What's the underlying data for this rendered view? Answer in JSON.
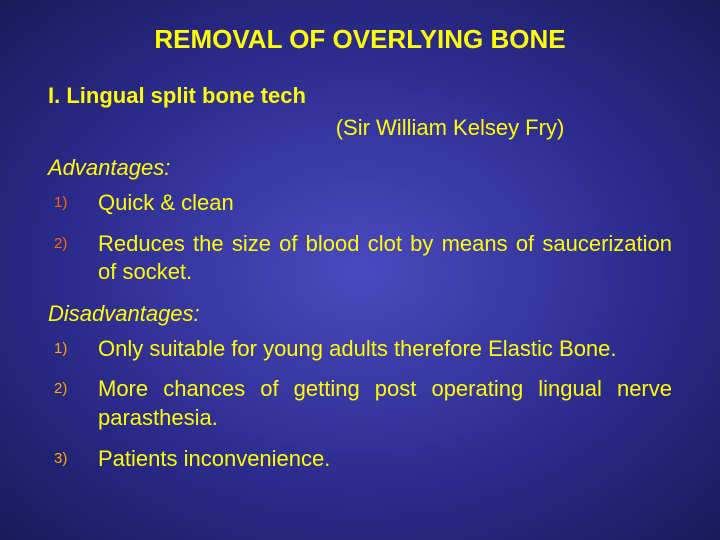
{
  "colors": {
    "title": "#ffff00",
    "sectionHead": "#ffff00",
    "attrib": "#ffff00",
    "advHead": "#ffff00",
    "disHead": "#ffff00",
    "advNum": "#ff6600",
    "disNum": "#ffa800",
    "advText": "#ffff00",
    "disText": "#ffff00"
  },
  "sizes": {
    "title": 26,
    "sectionHead": 22,
    "attrib": 22,
    "subhead": 22,
    "listText": 22,
    "listNum": 15
  },
  "title": "REMOVAL OF OVERLYING BONE",
  "sectionHead": "I. Lingual split bone tech",
  "attribution": "(Sir William Kelsey Fry)",
  "advantages": {
    "heading": "Advantages:",
    "items": [
      {
        "num": "1)",
        "text": "Quick & clean"
      },
      {
        "num": "2)",
        "text": "Reduces the size of blood clot by means of saucerization of socket."
      }
    ]
  },
  "disadvantages": {
    "heading": "Disadvantages:",
    "items": [
      {
        "num": "1)",
        "text": "Only suitable for young adults therefore Elastic Bone."
      },
      {
        "num": "2)",
        "text": "More chances of getting post operating lingual nerve parasthesia."
      },
      {
        "num": "3)",
        "text": "Patients inconvenience."
      }
    ]
  }
}
